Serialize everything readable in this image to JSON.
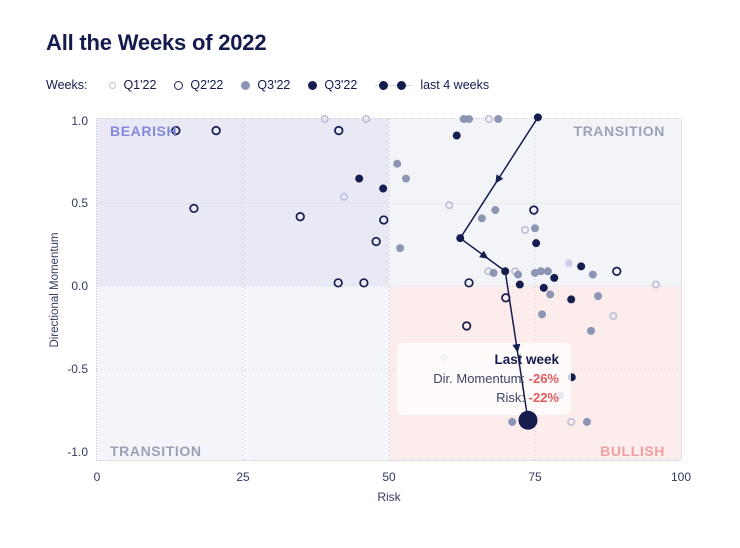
{
  "title": "All the Weeks of 2022",
  "legend": {
    "label": "Weeks:",
    "items": [
      {
        "label": "Q1'22",
        "marker": "open-light"
      },
      {
        "label": "Q2'22",
        "marker": "open-dark"
      },
      {
        "label": "Q3'22",
        "marker": "filled-gray"
      },
      {
        "label": "Q3'22",
        "marker": "filled-navy"
      },
      {
        "label": "last 4 weeks",
        "marker": "path"
      }
    ]
  },
  "colors": {
    "navy": "#151c4e",
    "gray_point": "#8d95b5",
    "light_point": "#bdc2d8",
    "faint_point": "#ccd0e2",
    "bearish_bg": "#e9e9f6",
    "neutral_bg": "#f3f4f8",
    "bullish_bg": "#fdecec",
    "bearish_label": "#8289d8",
    "transition_label": "#9ba2b8",
    "bullish_label": "#ef9ea2",
    "negative_red": "#dd5a5e"
  },
  "chart_data": {
    "type": "scatter",
    "title": "All the Weeks of 2022",
    "xlabel": "Risk",
    "ylabel": "Directional Momentum",
    "xlim": [
      0,
      100
    ],
    "ylim": [
      -1.0,
      1.0
    ],
    "xticks": [
      "0",
      "25",
      "50",
      "75",
      "100"
    ],
    "yticks": [
      "1.0",
      "0.5",
      "0.0",
      "-0.5",
      "-1.0"
    ],
    "grid": "dotted",
    "legend_position": "top",
    "quadrant_labels": {
      "top_left": "BEARISH",
      "top_right": "TRANSITION",
      "bottom_left": "TRANSITION",
      "bottom_right": "BULLISH"
    },
    "series": [
      {
        "name": "Q1'22",
        "marker": "open-light",
        "points": [
          [
            39.0,
            1.01
          ],
          [
            46.1,
            1.01
          ],
          [
            67.1,
            1.01
          ],
          [
            42.3,
            0.54
          ],
          [
            60.3,
            0.49
          ],
          [
            73.3,
            0.34
          ],
          [
            67.0,
            0.09
          ],
          [
            71.6,
            0.09
          ],
          [
            95.7,
            0.01
          ],
          [
            88.4,
            -0.18
          ],
          [
            81.2,
            -0.82
          ]
        ]
      },
      {
        "name": "Q2'22",
        "marker": "open-dark",
        "points": [
          [
            13.5,
            0.94
          ],
          [
            20.4,
            0.94
          ],
          [
            41.4,
            0.94
          ],
          [
            16.6,
            0.47
          ],
          [
            74.8,
            0.46
          ],
          [
            34.8,
            0.42
          ],
          [
            49.1,
            0.4
          ],
          [
            47.8,
            0.27
          ],
          [
            89.0,
            0.09
          ],
          [
            41.3,
            0.02
          ],
          [
            45.7,
            0.02
          ],
          [
            63.7,
            0.02
          ],
          [
            70.0,
            -0.07
          ],
          [
            63.3,
            -0.24
          ]
        ]
      },
      {
        "name": "Q3'22",
        "marker": "filled-gray",
        "points": [
          [
            62.8,
            1.01
          ],
          [
            63.7,
            1.01
          ],
          [
            68.7,
            1.01
          ],
          [
            51.4,
            0.74
          ],
          [
            52.9,
            0.65
          ],
          [
            68.2,
            0.46
          ],
          [
            65.9,
            0.41
          ],
          [
            75.0,
            0.35
          ],
          [
            51.9,
            0.23
          ],
          [
            67.9,
            0.08
          ],
          [
            72.1,
            0.07
          ],
          [
            75.0,
            0.08
          ],
          [
            76.0,
            0.09
          ],
          [
            77.2,
            0.09
          ],
          [
            84.9,
            0.07
          ],
          [
            77.6,
            -0.05
          ],
          [
            85.8,
            -0.06
          ],
          [
            76.2,
            -0.17
          ],
          [
            84.6,
            -0.27
          ],
          [
            79.3,
            -0.66
          ],
          [
            71.1,
            -0.82
          ],
          [
            83.9,
            -0.82
          ]
        ]
      },
      {
        "name": "Q3'22",
        "marker": "filled-navy",
        "points": [
          [
            61.6,
            0.91
          ],
          [
            44.9,
            0.65
          ],
          [
            49.0,
            0.59
          ],
          [
            75.2,
            0.26
          ],
          [
            82.9,
            0.12
          ],
          [
            78.3,
            0.05
          ],
          [
            72.4,
            0.01
          ],
          [
            76.5,
            -0.01
          ],
          [
            81.2,
            -0.08
          ],
          [
            81.3,
            -0.55
          ]
        ]
      },
      {
        "name": "",
        "marker": "faint",
        "points": [
          [
            80.8,
            0.14
          ],
          [
            59.4,
            -0.43
          ],
          [
            69.2,
            -0.67
          ]
        ]
      }
    ],
    "last_4_weeks_path": [
      [
        75.5,
        1.02
      ],
      [
        62.2,
        0.29
      ],
      [
        69.9,
        0.09
      ],
      [
        73.8,
        -0.81
      ]
    ],
    "annotation": {
      "title": "Last week",
      "rows": [
        {
          "label": "Dir. Momentum:",
          "value": "-26%"
        },
        {
          "label": "Risk:",
          "value": "-22%"
        }
      ]
    }
  }
}
